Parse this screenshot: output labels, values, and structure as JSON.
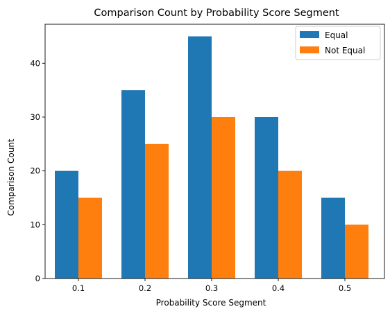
{
  "chart_data": {
    "type": "bar",
    "title": "Comparison Count by Probability Score Segment",
    "xlabel": "Probability Score Segment",
    "ylabel": "Comparison Count",
    "categories": [
      "0.1",
      "0.2",
      "0.3",
      "0.4",
      "0.5"
    ],
    "series": [
      {
        "name": "Equal",
        "color": "#1f77b4",
        "values": [
          20,
          35,
          45,
          30,
          15
        ]
      },
      {
        "name": "Not Equal",
        "color": "#ff7f0e",
        "values": [
          15,
          25,
          30,
          20,
          10
        ]
      }
    ],
    "ylim": [
      0,
      47.25
    ],
    "yticks": [
      "0",
      "10",
      "20",
      "30",
      "40"
    ],
    "grid": false,
    "legend_position": "top-right"
  }
}
